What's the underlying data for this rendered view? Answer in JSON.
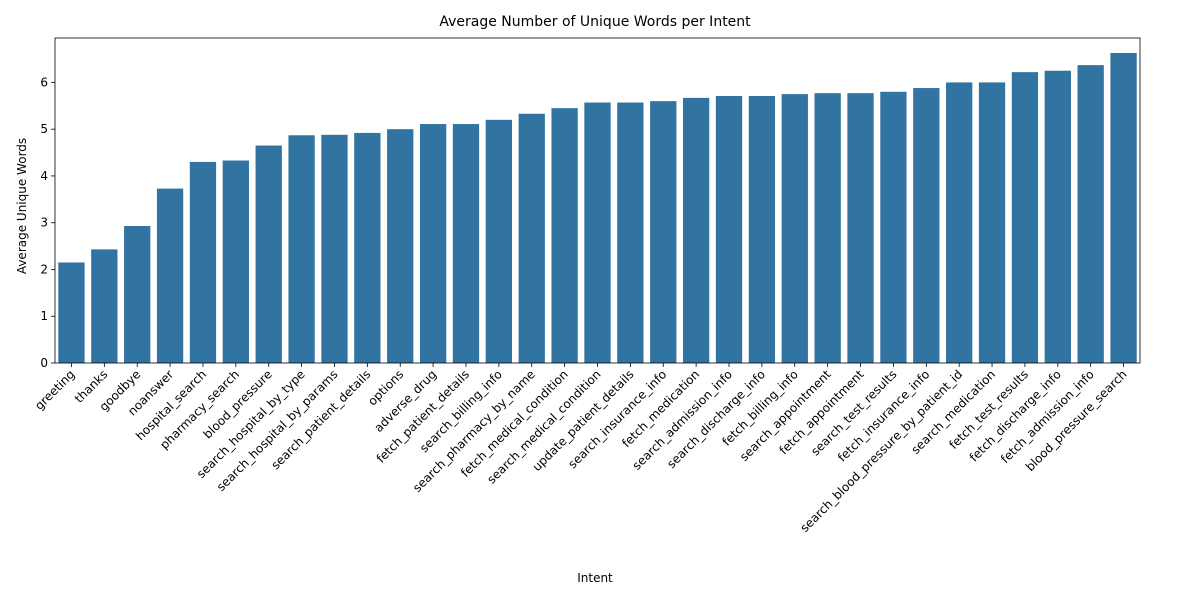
{
  "chart_data": {
    "type": "bar",
    "title": "Average Number of Unique Words per Intent",
    "xlabel": "Intent",
    "ylabel": "Average Unique Words",
    "ylim": [
      0,
      6.95
    ],
    "yticks": [
      0,
      1,
      2,
      3,
      4,
      5,
      6
    ],
    "grid": false,
    "bar_color": "#3274a1",
    "categories": [
      "greeting",
      "thanks",
      "goodbye",
      "noanswer",
      "hospital_search",
      "pharmacy_search",
      "blood_pressure",
      "search_hospital_by_type",
      "search_hospital_by_params",
      "search_patient_details",
      "options",
      "adverse_drug",
      "fetch_patient_details",
      "search_billing_info",
      "search_pharmacy_by_name",
      "fetch_medical_condition",
      "search_medical_condition",
      "update_patient_details",
      "search_insurance_info",
      "fetch_medication",
      "search_admission_info",
      "search_discharge_info",
      "fetch_billing_info",
      "search_appointment",
      "fetch_appointment",
      "search_test_results",
      "fetch_insurance_info",
      "search_blood_pressure_by_patient_id",
      "search_medication",
      "fetch_test_results",
      "fetch_discharge_info",
      "fetch_admission_info",
      "blood_pressure_search"
    ],
    "values": [
      2.15,
      2.43,
      2.93,
      3.73,
      4.3,
      4.33,
      4.65,
      4.87,
      4.88,
      4.92,
      5.0,
      5.11,
      5.11,
      5.2,
      5.33,
      5.45,
      5.57,
      5.57,
      5.6,
      5.67,
      5.71,
      5.71,
      5.75,
      5.77,
      5.77,
      5.8,
      5.88,
      6.0,
      6.0,
      6.22,
      6.25,
      6.37,
      6.63
    ]
  }
}
